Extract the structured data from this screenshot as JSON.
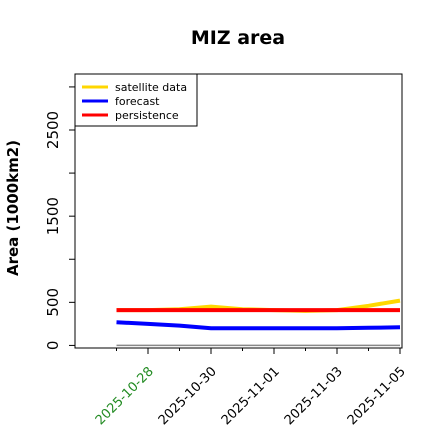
{
  "chart_data": {
    "type": "line",
    "title": "MIZ area",
    "ylabel": "Area (1000km2)",
    "xlabel": "",
    "ylim": [
      -30,
      3150
    ],
    "yticks": [
      0,
      500,
      1500,
      2500
    ],
    "x": [
      "2025-10-27",
      "2025-10-28",
      "2025-10-29",
      "2025-10-30",
      "2025-10-31",
      "2025-11-01",
      "2025-11-02",
      "2025-11-03",
      "2025-11-04",
      "2025-11-05"
    ],
    "xlim": [
      "2025-10-26",
      "2025-11-05"
    ],
    "xticks": [
      {
        "date": "2025-10-28",
        "label": "2025-10-28",
        "color": "#228B22"
      },
      {
        "date": "2025-10-30",
        "label": "2025-10-30",
        "color": "#000000"
      },
      {
        "date": "2025-11-01",
        "label": "2025-11-01",
        "color": "#000000"
      },
      {
        "date": "2025-11-03",
        "label": "2025-11-03",
        "color": "#000000"
      },
      {
        "date": "2025-11-05",
        "label": "2025-11-05",
        "color": "#000000"
      }
    ],
    "baseline": {
      "value": 0,
      "color": "#888888"
    },
    "series": [
      {
        "name": "satellite data",
        "color": "#FFD700",
        "values": [
          410,
          410,
          420,
          450,
          420,
          410,
          400,
          410,
          460,
          520
        ]
      },
      {
        "name": "forecast",
        "color": "#0000FF",
        "values": [
          270,
          250,
          230,
          200,
          200,
          200,
          200,
          200,
          205,
          210
        ]
      },
      {
        "name": "persistence",
        "color": "#FF0000",
        "values": [
          410,
          410,
          410,
          410,
          410,
          410,
          410,
          410,
          410,
          410
        ]
      }
    ],
    "legend_position": "top-left"
  }
}
